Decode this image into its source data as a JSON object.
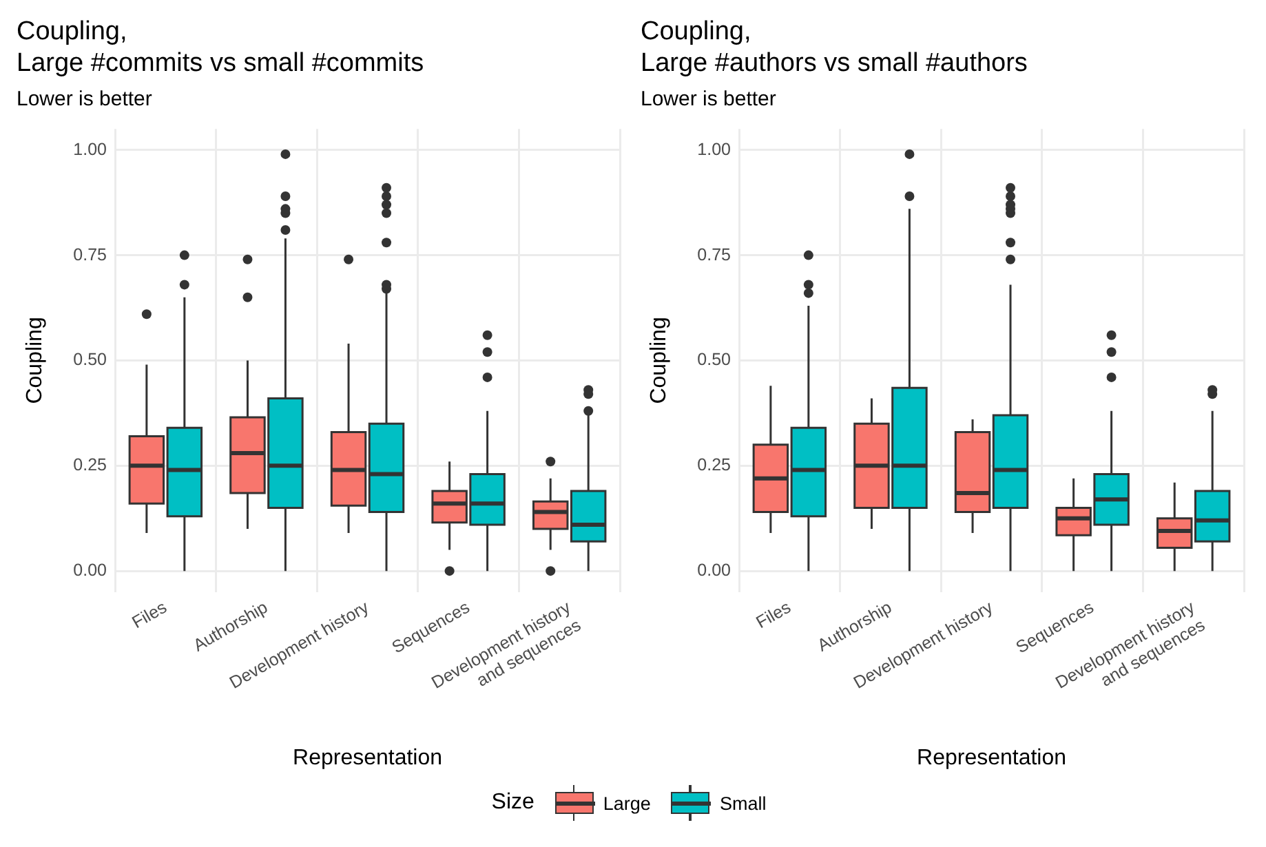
{
  "chart_data": [
    {
      "type": "box",
      "title": "Coupling,\nLarge #commits vs small #commits",
      "subtitle": "Lower is better",
      "xlabel": "Representation",
      "ylabel": "Coupling",
      "categories": [
        "Files",
        "Authorship",
        "Development history",
        "Sequences",
        "Development history\nand sequences"
      ],
      "ylim": [
        -0.05,
        1.05
      ],
      "yticks": [
        {
          "value": 0,
          "label": "0.00"
        },
        {
          "value": 0.25,
          "label": "0.25"
        },
        {
          "value": 0.5,
          "label": "0.50"
        },
        {
          "value": 0.75,
          "label": "0.75"
        },
        {
          "value": 1,
          "label": "1.00"
        }
      ],
      "grid": true,
      "legend": "bottom",
      "legend_title": "Size",
      "series": [
        {
          "name": "Large",
          "color": "#f8766d",
          "boxes": [
            {
              "low": 0.09,
              "q1": 0.16,
              "median": 0.25,
              "q3": 0.32,
              "high": 0.49,
              "outliers": [
                0.61
              ]
            },
            {
              "low": 0.1,
              "q1": 0.185,
              "median": 0.28,
              "q3": 0.365,
              "high": 0.5,
              "outliers": [
                0.65,
                0.74
              ]
            },
            {
              "low": 0.09,
              "q1": 0.155,
              "median": 0.24,
              "q3": 0.33,
              "high": 0.54,
              "outliers": [
                0.74
              ]
            },
            {
              "low": 0.05,
              "q1": 0.115,
              "median": 0.16,
              "q3": 0.19,
              "high": 0.26,
              "outliers": [
                0
              ]
            },
            {
              "low": 0.05,
              "q1": 0.1,
              "median": 0.14,
              "q3": 0.165,
              "high": 0.22,
              "outliers": [
                0,
                0.26
              ]
            }
          ]
        },
        {
          "name": "Small",
          "color": "#00bfc4",
          "boxes": [
            {
              "low": 0,
              "q1": 0.13,
              "median": 0.24,
              "q3": 0.34,
              "high": 0.65,
              "outliers": [
                0.68,
                0.75
              ]
            },
            {
              "low": 0,
              "q1": 0.15,
              "median": 0.25,
              "q3": 0.41,
              "high": 0.79,
              "outliers": [
                0.81,
                0.85,
                0.86,
                0.89,
                0.99
              ]
            },
            {
              "low": 0,
              "q1": 0.14,
              "median": 0.23,
              "q3": 0.35,
              "high": 0.66,
              "outliers": [
                0.67,
                0.68,
                0.78,
                0.85,
                0.87,
                0.89,
                0.91
              ]
            },
            {
              "low": 0,
              "q1": 0.11,
              "median": 0.16,
              "q3": 0.23,
              "high": 0.38,
              "outliers": [
                0.46,
                0.52,
                0.56
              ]
            },
            {
              "low": 0,
              "q1": 0.07,
              "median": 0.11,
              "q3": 0.19,
              "high": 0.37,
              "outliers": [
                0.38,
                0.42,
                0.43
              ]
            }
          ]
        }
      ]
    },
    {
      "type": "box",
      "title": "Coupling,\nLarge #authors vs small #authors",
      "subtitle": "Lower is better",
      "xlabel": "Representation",
      "ylabel": "Coupling",
      "categories": [
        "Files",
        "Authorship",
        "Development history",
        "Sequences",
        "Development history\nand sequences"
      ],
      "ylim": [
        -0.05,
        1.05
      ],
      "yticks": [
        {
          "value": 0,
          "label": "0.00"
        },
        {
          "value": 0.25,
          "label": "0.25"
        },
        {
          "value": 0.5,
          "label": "0.50"
        },
        {
          "value": 0.75,
          "label": "0.75"
        },
        {
          "value": 1,
          "label": "1.00"
        }
      ],
      "grid": true,
      "series": [
        {
          "color": "#f8766d",
          "boxes": [
            {
              "low": 0.09,
              "q1": 0.14,
              "median": 0.22,
              "q3": 0.3,
              "high": 0.44
            },
            {
              "low": 0.1,
              "q1": 0.15,
              "median": 0.25,
              "q3": 0.35,
              "high": 0.41
            },
            {
              "low": 0.09,
              "q1": 0.14,
              "median": 0.185,
              "q3": 0.33,
              "high": 0.36
            },
            {
              "low": 0,
              "q1": 0.085,
              "median": 0.125,
              "q3": 0.15,
              "high": 0.22
            },
            {
              "low": 0,
              "q1": 0.055,
              "median": 0.095,
              "q3": 0.125,
              "high": 0.21
            }
          ]
        },
        {
          "color": "#00bfc4",
          "boxes": [
            {
              "low": 0,
              "q1": 0.13,
              "median": 0.24,
              "q3": 0.34,
              "high": 0.63,
              "outliers": [
                0.66,
                0.68,
                0.75
              ]
            },
            {
              "low": 0,
              "q1": 0.15,
              "median": 0.25,
              "q3": 0.435,
              "high": 0.86,
              "outliers": [
                0.89,
                0.99
              ]
            },
            {
              "low": 0,
              "q1": 0.15,
              "median": 0.24,
              "q3": 0.37,
              "high": 0.68,
              "outliers": [
                0.74,
                0.78,
                0.85,
                0.86,
                0.87,
                0.89,
                0.91
              ]
            },
            {
              "low": 0,
              "q1": 0.11,
              "median": 0.17,
              "q3": 0.23,
              "high": 0.38,
              "outliers": [
                0.46,
                0.52,
                0.56
              ]
            },
            {
              "low": 0,
              "q1": 0.07,
              "median": 0.12,
              "q3": 0.19,
              "high": 0.38,
              "outliers": [
                0.42,
                0.43
              ]
            }
          ]
        }
      ]
    }
  ]
}
